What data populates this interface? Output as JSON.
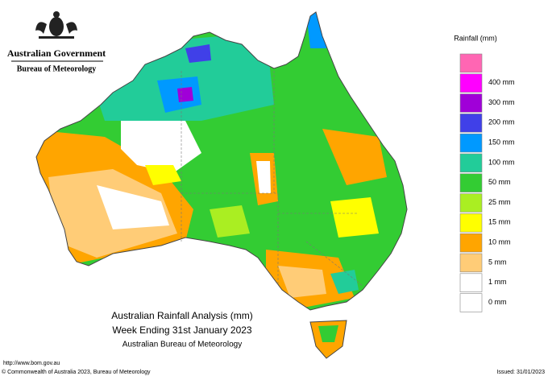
{
  "header": {
    "government": "Australian Government",
    "agency": "Bureau of Meteorology"
  },
  "legend": {
    "title": "Rainfall (mm)",
    "items": [
      {
        "label": null,
        "color": "#ff66b3"
      },
      {
        "label": "400 mm",
        "color": "#ff00ff"
      },
      {
        "label": "300 mm",
        "color": "#a000d8"
      },
      {
        "label": "200 mm",
        "color": "#4040e8"
      },
      {
        "label": "150 mm",
        "color": "#0099ff"
      },
      {
        "label": "100 mm",
        "color": "#22cc99"
      },
      {
        "label": "50 mm",
        "color": "#33cc33"
      },
      {
        "label": "25 mm",
        "color": "#aaee22"
      },
      {
        "label": "15 mm",
        "color": "#ffff00"
      },
      {
        "label": "10 mm",
        "color": "#ffa500"
      },
      {
        "label": "5 mm",
        "color": "#ffcc77"
      },
      {
        "label": "1 mm",
        "color": "#ffffff"
      },
      {
        "label": "0 mm",
        "color": null
      }
    ]
  },
  "map": {
    "title": "Australian Rainfall Analysis (mm)",
    "period": "Week Ending 31st January 2023",
    "source": "Australian Bureau of Meteorology"
  },
  "footer": {
    "url": "http://www.bom.gov.au",
    "copyright": "© Commonwealth of Australia 2023, Bureau of Meteorology",
    "issued": "Issued: 31/01/2023"
  }
}
